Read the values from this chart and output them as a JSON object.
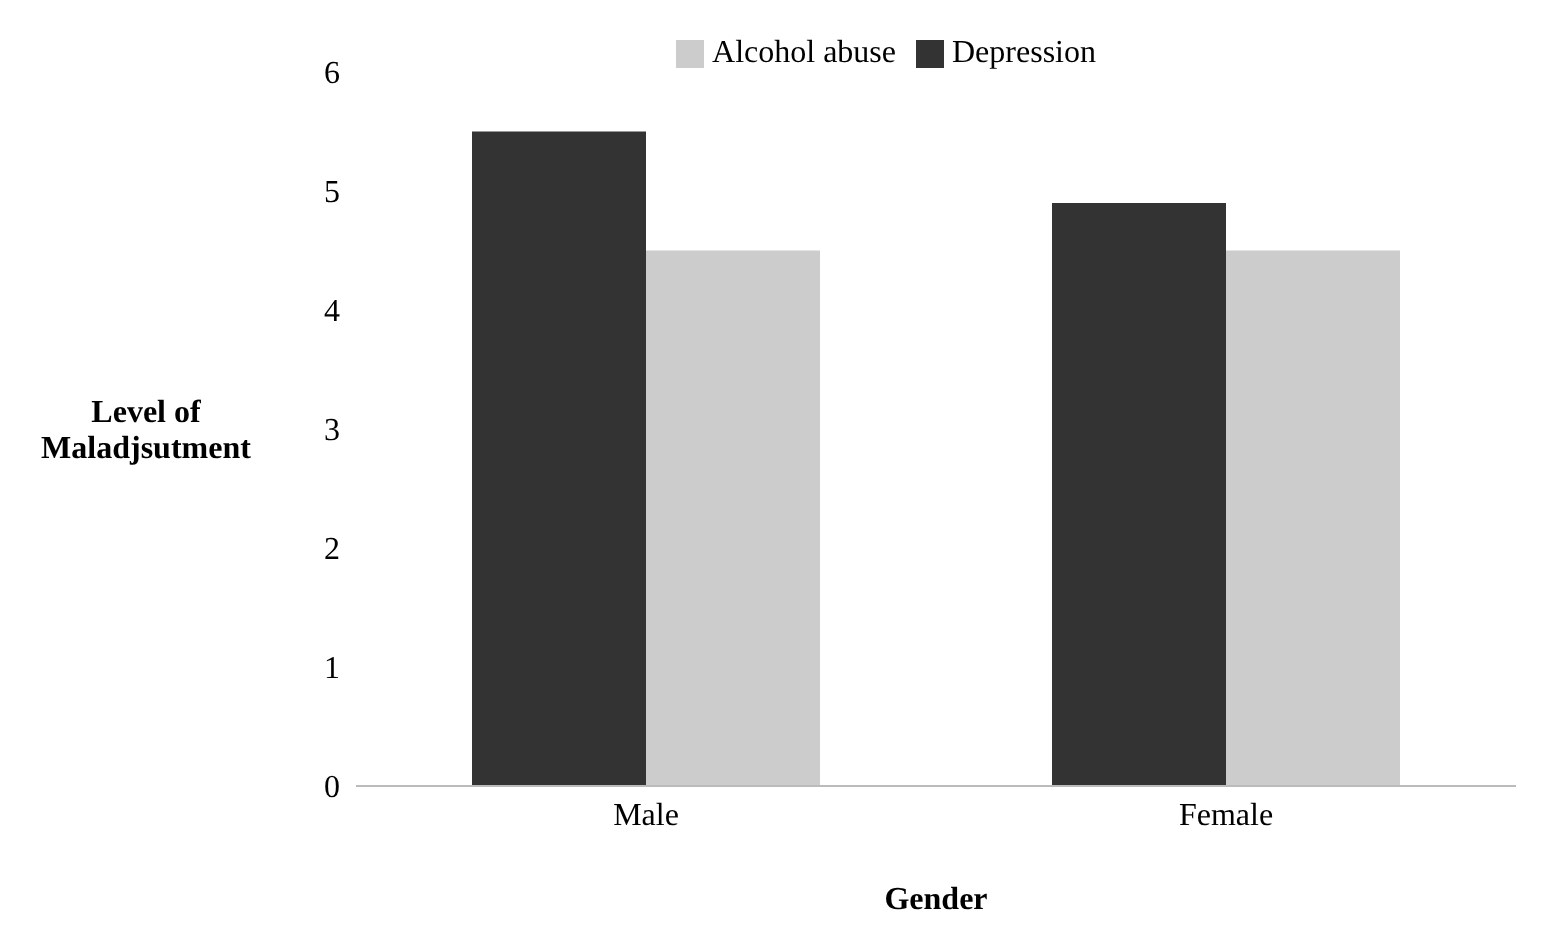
{
  "chart_data": {
    "type": "bar",
    "xlabel": "Gender",
    "ylabel": "Level of Maladjsutment",
    "categories": [
      "Male",
      "Female"
    ],
    "series": [
      {
        "name": "Depression",
        "color": "#333333",
        "values": [
          5.5,
          4.9
        ]
      },
      {
        "name": "Alcohol abuse",
        "color": "#cccccc",
        "values": [
          4.5,
          4.5
        ]
      }
    ],
    "ylim": [
      0,
      6
    ],
    "yticks": [
      0,
      1,
      2,
      3,
      4,
      5,
      6
    ],
    "grid": false,
    "legend": "top"
  }
}
